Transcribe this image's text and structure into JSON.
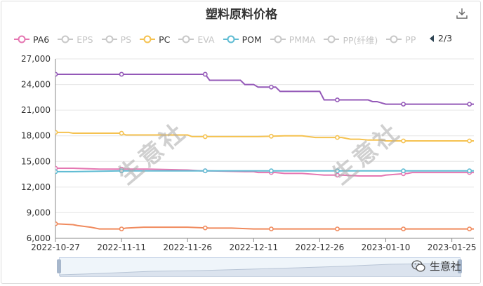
{
  "title": "塑料原料价格",
  "legend": [
    {
      "name": "PA6",
      "color": "#e577b2",
      "active": true
    },
    {
      "name": "EPS",
      "color": "#c8c8c8",
      "active": false
    },
    {
      "name": "PS",
      "color": "#c8c8c8",
      "active": false
    },
    {
      "name": "PC",
      "color": "#f5c250",
      "active": true
    },
    {
      "name": "EVA",
      "color": "#c8c8c8",
      "active": false
    },
    {
      "name": "POM",
      "color": "#5fbcd3",
      "active": true
    },
    {
      "name": "PMMA",
      "color": "#c8c8c8",
      "active": false
    },
    {
      "name": "PP(纤维)",
      "color": "#c8c8c8",
      "active": false
    },
    {
      "name": "PP",
      "color": "#c8c8c8",
      "active": false
    }
  ],
  "pager": {
    "text": "2/3"
  },
  "watermark": "生意社",
  "brand": "生意社",
  "chart_data": {
    "type": "line",
    "title": "塑料原料价格",
    "xlabel": "",
    "ylabel": "",
    "ylim": [
      6000,
      27000
    ],
    "yticks": [
      "6,000",
      "9,000",
      "12,000",
      "15,000",
      "18,000",
      "21,000",
      "24,000",
      "27,000"
    ],
    "xticks": [
      "2022-10-27",
      "2022-11-11",
      "2022-11-26",
      "2022-12-11",
      "2022-12-26",
      "2023-01-10",
      "2023-01-25"
    ],
    "xlim": [
      0,
      95
    ],
    "series": [
      {
        "name": "",
        "color": "#9459b8",
        "x": [
          -5,
          19,
          20,
          34,
          35,
          38,
          42,
          43,
          44,
          45,
          46,
          50,
          51,
          52,
          53,
          60,
          61,
          70,
          71,
          72,
          73,
          75,
          92,
          100
        ],
        "y": [
          25200,
          25200,
          25200,
          25200,
          24500,
          24500,
          24500,
          24000,
          24000,
          24000,
          23700,
          23700,
          23200,
          23200,
          23200,
          23200,
          22200,
          22200,
          22200,
          22000,
          22000,
          21700,
          21700,
          21700
        ],
        "markers": [
          0,
          15,
          34,
          49,
          64,
          79,
          94
        ]
      },
      {
        "name": "PC",
        "color": "#f5c250",
        "x": [
          -5,
          0,
          3,
          4,
          15,
          16,
          20,
          30,
          31,
          35,
          39,
          40,
          45,
          46,
          52,
          53,
          56,
          59,
          60,
          64,
          65,
          67,
          69,
          71,
          74,
          75,
          77,
          79,
          94,
          100
        ],
        "y": [
          18400,
          18400,
          18400,
          18300,
          18300,
          18100,
          18100,
          18100,
          17900,
          17900,
          17900,
          17900,
          17900,
          17900,
          18000,
          18000,
          18000,
          17800,
          17800,
          17800,
          17800,
          17600,
          17600,
          17500,
          17500,
          17400,
          17400,
          17400,
          17400,
          17400
        ],
        "markers": [
          0,
          15,
          34,
          49,
          64,
          79,
          94
        ]
      },
      {
        "name": "PA6",
        "color": "#e577b2",
        "x": [
          -5,
          0,
          4,
          10,
          15,
          20,
          21,
          30,
          33,
          34,
          35,
          43,
          45,
          46,
          50,
          52,
          56,
          61,
          64,
          65,
          69,
          71,
          74,
          75,
          80,
          81,
          85,
          94,
          100
        ],
        "y": [
          14200,
          14200,
          14200,
          14100,
          14100,
          14100,
          14100,
          14000,
          13900,
          13900,
          13900,
          13800,
          13800,
          13700,
          13700,
          13600,
          13600,
          13400,
          13400,
          13400,
          13300,
          13300,
          13300,
          13400,
          13600,
          13700,
          13700,
          13700,
          13700
        ],
        "markers": [
          0,
          15,
          34,
          49,
          64,
          79,
          94
        ]
      },
      {
        "name": "POM",
        "color": "#5fbcd3",
        "x": [
          -5,
          0,
          4,
          15,
          20,
          30,
          34,
          49,
          64,
          79,
          94,
          100
        ],
        "y": [
          13700,
          13800,
          13800,
          13900,
          13900,
          13900,
          13900,
          13900,
          13900,
          13900,
          13900,
          13900
        ],
        "markers": [
          0,
          15,
          34,
          49,
          64,
          79,
          94
        ]
      },
      {
        "name": "",
        "color": "#f08a5d",
        "x": [
          -5,
          0,
          4,
          5,
          8,
          10,
          15,
          16,
          20,
          25,
          30,
          35,
          40,
          45,
          49,
          55,
          60,
          64,
          70,
          75,
          79,
          80,
          94,
          100
        ],
        "y": [
          7700,
          7700,
          7600,
          7500,
          7300,
          7100,
          7100,
          7200,
          7300,
          7300,
          7300,
          7200,
          7200,
          7100,
          7100,
          7100,
          7100,
          7100,
          7100,
          7100,
          7100,
          7100,
          7100,
          7100
        ],
        "markers": [
          0,
          15,
          34,
          49,
          64,
          79,
          94
        ]
      }
    ]
  }
}
